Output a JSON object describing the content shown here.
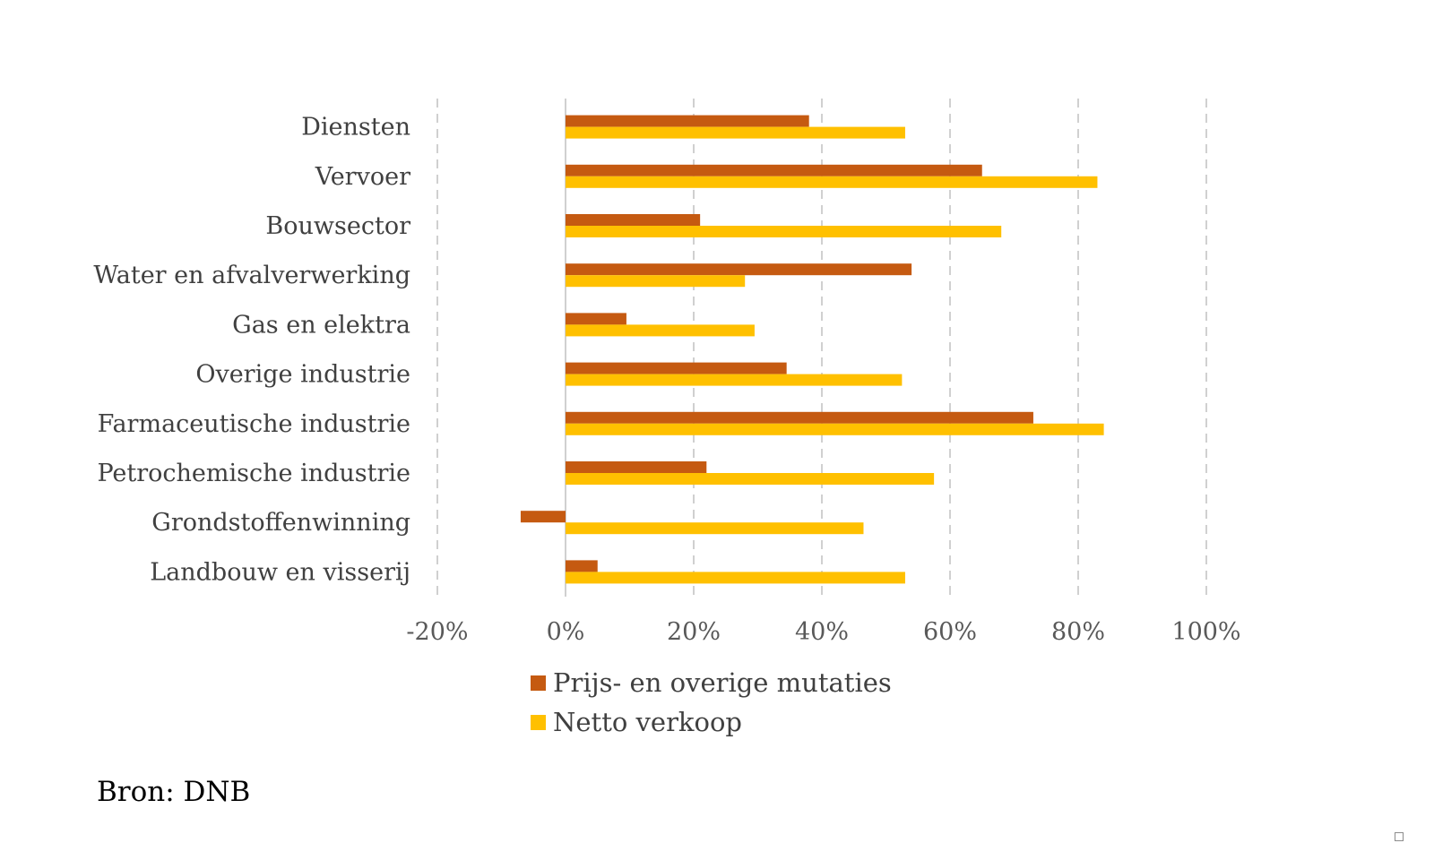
{
  "chart_data": {
    "type": "bar",
    "orientation": "horizontal",
    "categories": [
      "Diensten",
      "Vervoer",
      "Bouwsector",
      "Water en afvalverwerking",
      "Gas en elektra",
      "Overige industrie",
      "Farmaceutische industrie",
      "Petrochemische industrie",
      "Grondstoffenwinning",
      "Landbouw en visserij"
    ],
    "series": [
      {
        "name": "Prijs- en overige mutaties",
        "color": "#c55a11",
        "values": [
          38,
          65,
          21,
          54,
          9.5,
          34.5,
          73,
          22,
          -7,
          5
        ]
      },
      {
        "name": "Netto verkoop",
        "color": "#ffc000",
        "values": [
          53,
          83,
          68,
          28,
          29.5,
          52.5,
          84,
          57.5,
          46.5,
          53
        ]
      }
    ],
    "xlim": [
      -20,
      100
    ],
    "xticks": [
      "-20%",
      "0%",
      "20%",
      "40%",
      "60%",
      "80%",
      "100%"
    ],
    "xtick_values": [
      -20,
      0,
      20,
      40,
      60,
      80,
      100
    ],
    "grid": "vertical-dashed",
    "legend": "bottom",
    "xlabel": "",
    "ylabel": ""
  },
  "footer": {
    "source": "Bron: DNB"
  }
}
